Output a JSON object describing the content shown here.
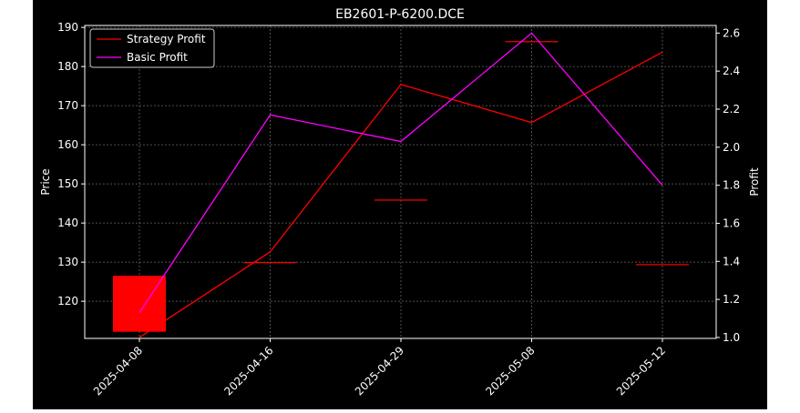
{
  "chart_data": {
    "type": "candlestick+line",
    "title": "EB2601-P-6200.DCE",
    "ylabel_left": "Price",
    "ylabel_right": "Profit",
    "xlabel": "",
    "categories": [
      "2025-04-08",
      "2025-04-16",
      "2025-04-29",
      "2025-05-08",
      "2025-05-12"
    ],
    "ylim_left": [
      110.5,
      190.5
    ],
    "ylim_right": [
      0.995,
      2.64
    ],
    "yticks_left": [
      120,
      130,
      140,
      150,
      160,
      170,
      180,
      190
    ],
    "yticks_right": [
      1.0,
      1.2,
      1.4,
      1.6,
      1.8,
      2.0,
      2.2,
      2.4,
      2.6
    ],
    "grid": true,
    "legend_position": "upper-left",
    "candles": [
      {
        "x": "2025-04-08",
        "open": 126.5,
        "close": 112.2
      },
      {
        "x": "2025-04-16",
        "open": 130.0,
        "close": 130.0
      },
      {
        "x": "2025-04-29",
        "open": 146.0,
        "close": 146.0
      },
      {
        "x": "2025-05-08",
        "open": 186.5,
        "close": 186.5
      },
      {
        "x": "2025-05-12",
        "open": 129.5,
        "close": 129.5
      }
    ],
    "series": [
      {
        "name": "Strategy Profit",
        "axis": "right",
        "color": "#ff0000",
        "values": [
          1.0,
          1.45,
          2.33,
          2.13,
          2.5
        ]
      },
      {
        "name": "Basic Profit",
        "axis": "right",
        "color": "#ff00ff",
        "values": [
          1.13,
          2.17,
          2.03,
          2.6,
          1.8
        ]
      }
    ],
    "colors": {
      "background": "#000000",
      "text": "#ffffff",
      "grid": "#666666",
      "candle": "#ff0000"
    }
  }
}
